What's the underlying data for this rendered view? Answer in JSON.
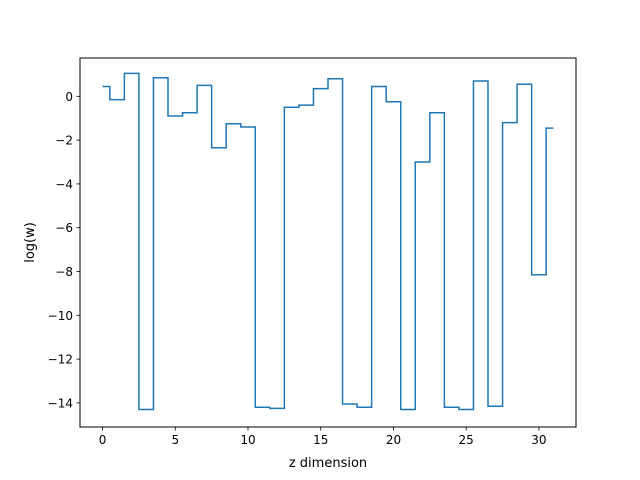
{
  "chart_data": {
    "type": "line",
    "step": "mid",
    "xlabel": "z dimension",
    "ylabel": "log(w)",
    "xlim": [
      -1.55,
      32.55
    ],
    "ylim": [
      -15.1,
      1.75
    ],
    "xticks": [
      0,
      5,
      10,
      15,
      20,
      25,
      30
    ],
    "yticks": [
      0,
      -2,
      -4,
      -6,
      -8,
      -10,
      -12,
      -14
    ],
    "x": [
      0,
      1,
      2,
      3,
      4,
      5,
      6,
      7,
      8,
      9,
      10,
      11,
      12,
      13,
      14,
      15,
      16,
      17,
      18,
      19,
      20,
      21,
      22,
      23,
      24,
      25,
      26,
      27,
      28,
      29,
      30,
      31
    ],
    "series": [
      {
        "values": [
          0.45,
          -0.15,
          1.05,
          -14.3,
          0.85,
          -0.9,
          -0.75,
          0.5,
          -2.35,
          -1.25,
          -1.4,
          -14.2,
          -14.25,
          -0.5,
          -0.4,
          0.35,
          0.8,
          -14.05,
          -14.2,
          0.45,
          -0.25,
          -14.3,
          -3.0,
          -0.75,
          -14.2,
          -14.3,
          0.7,
          -14.15,
          -1.2,
          0.55,
          -8.15,
          -1.45
        ],
        "color": "#1f77b4"
      }
    ]
  }
}
